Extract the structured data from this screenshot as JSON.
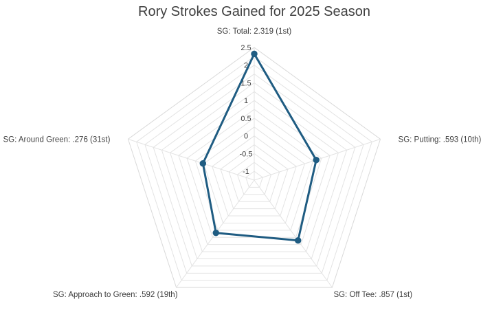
{
  "chart_data": {
    "type": "radar",
    "title": "Rory Strokes Gained for 2025 Season",
    "categories": [
      "SG: Total: 2.319 (1st)",
      "SG: Putting: .593 (10th)",
      "SG: Off Tee: .857 (1st)",
      "SG: Approach to Green: .592 (19th)",
      "SG: Around Green: .276 (31st)"
    ],
    "series": [
      {
        "values": [
          2.319,
          0.593,
          0.857,
          0.592,
          0.276
        ]
      }
    ],
    "rlim": [
      -1.25,
      2.5
    ],
    "ticks": [
      -1,
      -0.5,
      0,
      0.5,
      1,
      1.5,
      2,
      2.5
    ],
    "tick_labels": [
      "-1",
      "-0.5",
      "0",
      "0.5",
      "1",
      "1.5",
      "2",
      "2.5"
    ],
    "grid": true,
    "legend": "none",
    "colors": {
      "series_line": "#1f5c82",
      "marker_fill": "#1f5c82",
      "grid": "#e3e3e3"
    }
  }
}
